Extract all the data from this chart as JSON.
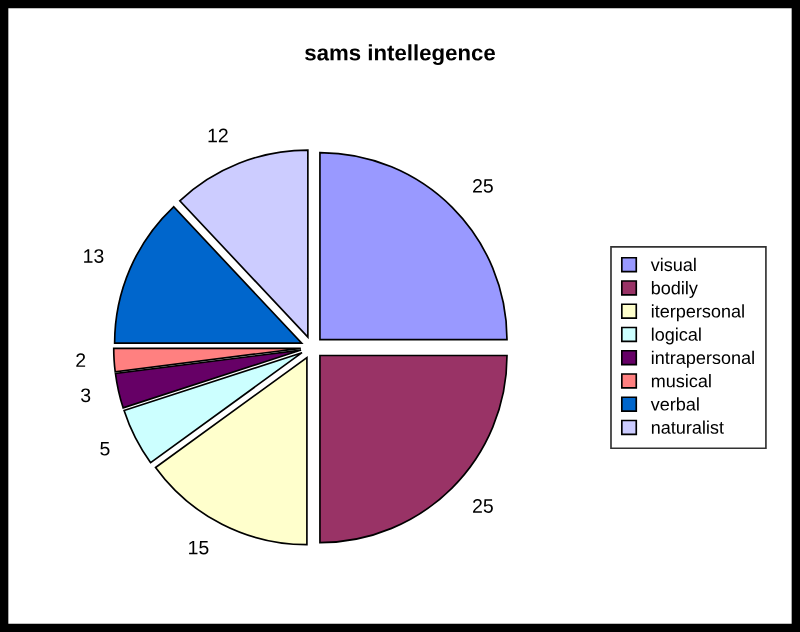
{
  "chart_data": {
    "type": "pie",
    "title": "sams intellegence",
    "categories": [
      "visual",
      "bodily",
      "iterpersonal",
      "logical",
      "intrapersonal",
      "musical",
      "verbal",
      "naturalist"
    ],
    "values": [
      25,
      25,
      15,
      5,
      3,
      2,
      13,
      12
    ],
    "colors": [
      "#9999ff",
      "#993366",
      "#ffffcc",
      "#ccffff",
      "#660066",
      "#ff8080",
      "#0066cc",
      "#ccccff"
    ],
    "data_labels": true,
    "legend": "right"
  }
}
